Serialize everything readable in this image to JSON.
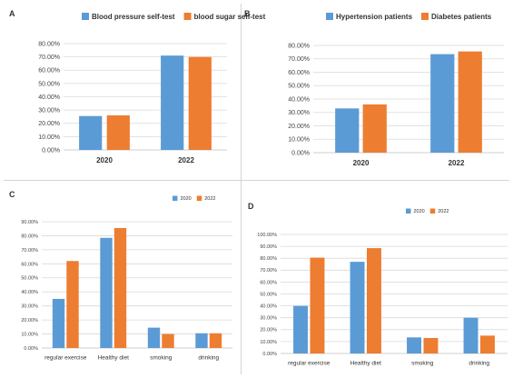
{
  "colors": {
    "blue": "#5b9bd5",
    "orange": "#ed7d31",
    "grid": "#d9d9d9"
  },
  "chart_data": [
    {
      "panel": "A",
      "type": "bar",
      "categories": [
        "2020",
        "2022"
      ],
      "series": [
        {
          "name": "Blood pressure self-test",
          "values": [
            25.5,
            71.0
          ]
        },
        {
          "name": "blood sugar  self-test",
          "values": [
            26.0,
            70.0
          ]
        }
      ],
      "ylim": [
        0,
        80
      ],
      "ytick_step": 10,
      "yticks": [
        "0.00%",
        "10.00%",
        "20.00%",
        "30.00%",
        "40.00%",
        "50.00%",
        "60.00%",
        "70.00%",
        "80.00%"
      ],
      "legend": "top",
      "grid": true
    },
    {
      "panel": "B",
      "type": "bar",
      "categories": [
        "2020",
        "2022"
      ],
      "series": [
        {
          "name": "Hypertension patients",
          "values": [
            33.0,
            73.5
          ]
        },
        {
          "name": "Diabetes patients",
          "values": [
            36.0,
            75.5
          ]
        }
      ],
      "ylim": [
        0,
        80
      ],
      "ytick_step": 10,
      "yticks": [
        "0.00%",
        "10.00%",
        "20.00%",
        "30.00%",
        "40.00%",
        "50.00%",
        "60.00%",
        "70.00%",
        "80.00%"
      ],
      "legend": "top",
      "grid": true
    },
    {
      "panel": "C",
      "type": "bar",
      "categories": [
        "regular exercise",
        "Healthy diet",
        "smoking",
        "drinking"
      ],
      "series": [
        {
          "name": "2020",
          "values": [
            35.0,
            78.5,
            14.5,
            10.5
          ]
        },
        {
          "name": "2022",
          "values": [
            62.0,
            85.5,
            10.0,
            10.5
          ]
        }
      ],
      "ylim": [
        0,
        90
      ],
      "ytick_step": 10,
      "yticks": [
        "0.00%",
        "10.00%",
        "20.00%",
        "30.00%",
        "40.00%",
        "50.00%",
        "60.00%",
        "70.00%",
        "80.00%",
        "90.00%"
      ],
      "legend": "top-right",
      "grid": true
    },
    {
      "panel": "D",
      "type": "bar",
      "categories": [
        "regular exercise",
        "Healthy diet",
        "smoking",
        "drinking"
      ],
      "series": [
        {
          "name": "2020",
          "values": [
            40.0,
            77.0,
            13.5,
            30.0
          ]
        },
        {
          "name": "2022",
          "values": [
            80.5,
            88.5,
            13.0,
            15.0
          ]
        }
      ],
      "ylim": [
        0,
        100
      ],
      "ytick_step": 10,
      "yticks": [
        "0.00%",
        "10.00%",
        "20.00%",
        "30.00%",
        "40.00%",
        "50.00%",
        "60.00%",
        "70.00%",
        "80.00%",
        "90.00%",
        "100.00%"
      ],
      "legend": "top-right",
      "grid": true
    }
  ]
}
